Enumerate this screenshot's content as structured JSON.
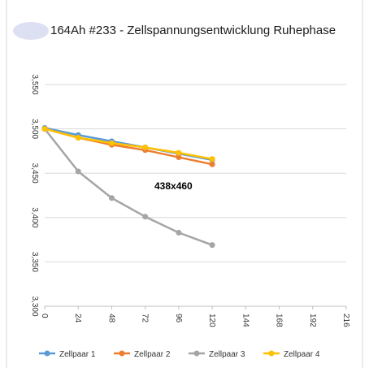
{
  "chart_data": {
    "type": "line",
    "title": "164Ah #233 - Zellspannungsentwicklung Ruhephase",
    "xlabel": "",
    "ylabel": "",
    "x_ticks": [
      "0",
      "24",
      "48",
      "72",
      "96",
      "120",
      "144",
      "168",
      "192",
      "216"
    ],
    "y_ticks": [
      "3,300",
      "3,350",
      "3,400",
      "3,450",
      "3,500",
      "3,550"
    ],
    "xlim": [
      0,
      216
    ],
    "ylim": [
      3.3,
      3.55
    ],
    "grid": "horizontal",
    "legend_position": "bottom",
    "x": [
      0,
      24,
      48,
      72,
      96,
      120
    ],
    "series": [
      {
        "name": "Zellpaar 1",
        "color": "#5b9bd5",
        "values": [
          3.501,
          3.493,
          3.486,
          3.479,
          3.472,
          3.465
        ]
      },
      {
        "name": "Zellpaar 2",
        "color": "#ed7d31",
        "values": [
          3.5,
          3.49,
          3.482,
          3.476,
          3.468,
          3.46
        ]
      },
      {
        "name": "Zellpaar 3",
        "color": "#a5a5a5",
        "values": [
          3.5,
          3.452,
          3.422,
          3.401,
          3.383,
          3.369
        ]
      },
      {
        "name": "Zellpaar 4",
        "color": "#ffc000",
        "values": [
          3.5,
          3.49,
          3.484,
          3.479,
          3.473,
          3.466
        ]
      }
    ]
  },
  "overlay_label": "438x460"
}
